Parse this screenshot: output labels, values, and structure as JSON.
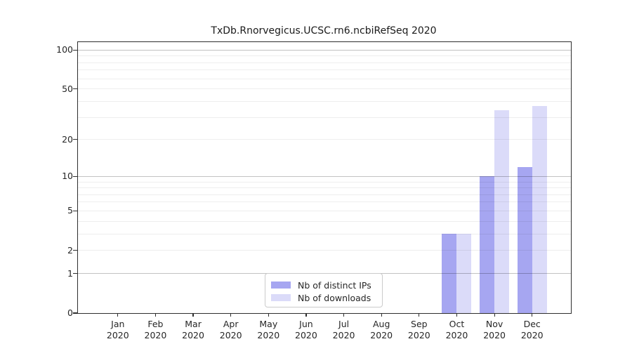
{
  "chart_data": {
    "type": "bar",
    "title": "TxDb.Rnorvegicus.UCSC.rn6.ncbiRefSeq 2020",
    "categories": [
      "Jan 2020",
      "Feb 2020",
      "Mar 2020",
      "Apr 2020",
      "May 2020",
      "Jun 2020",
      "Jul 2020",
      "Aug 2020",
      "Sep 2020",
      "Oct 2020",
      "Nov 2020",
      "Dec 2020"
    ],
    "series": [
      {
        "name": "Nb of distinct IPs",
        "color": "#a6a6f1",
        "values": [
          0,
          0,
          0,
          0,
          0,
          0,
          0,
          0,
          0,
          3,
          10,
          12
        ]
      },
      {
        "name": "Nb of downloads",
        "color": "#dbdbf9",
        "values": [
          0,
          0,
          0,
          0,
          0,
          0,
          0,
          0,
          0,
          3,
          34,
          37
        ]
      }
    ],
    "yscale": "log1p",
    "ylim": [
      0,
      100
    ],
    "yticks": [
      100,
      50,
      20,
      10,
      5,
      2,
      1,
      0
    ],
    "grid": "both",
    "gridline_values": {
      "major": [
        1,
        10,
        100
      ],
      "minor": [
        2,
        3,
        4,
        5,
        6,
        7,
        8,
        9,
        20,
        30,
        40,
        50,
        60,
        70,
        80,
        90
      ]
    },
    "legend_position": "lower center"
  }
}
